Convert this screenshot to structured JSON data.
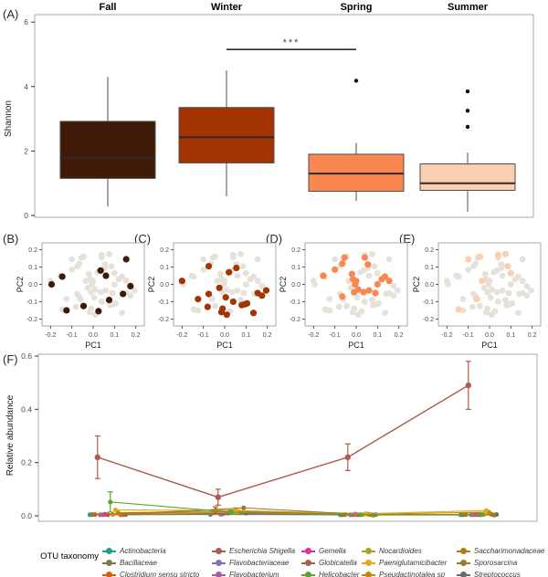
{
  "panel_labels": {
    "a": "(A)",
    "b": "(B)",
    "c": "(C)",
    "d": "(D)",
    "e": "(E)",
    "f": "(F)"
  },
  "colors": {
    "seasons": {
      "Fall": "#3F1A08",
      "Winter": "#A23503",
      "Spring": "#FA8650",
      "Summer": "#FCCFB2"
    },
    "pca_gray": "#E6E2D9",
    "panel_border": "#A8A8A8",
    "tick_text": "#4D4D4D",
    "outlier": "#111111"
  },
  "pca_points": [
    {
      "x": -0.195,
      "y": 0.0,
      "season": "Fall"
    },
    {
      "x": -0.145,
      "y": 0.045,
      "season": "Fall"
    },
    {
      "x": 0.035,
      "y": 0.08,
      "season": "Fall"
    },
    {
      "x": 0.06,
      "y": 0.05,
      "season": "Fall"
    },
    {
      "x": 0.155,
      "y": 0.145,
      "season": "Fall"
    },
    {
      "x": 0.175,
      "y": -0.01,
      "season": "Fall"
    },
    {
      "x": 0.14,
      "y": -0.055,
      "season": "Fall"
    },
    {
      "x": 0.075,
      "y": -0.09,
      "season": "Fall"
    },
    {
      "x": -0.045,
      "y": -0.125,
      "season": "Fall"
    },
    {
      "x": -0.125,
      "y": -0.15,
      "season": "Fall"
    },
    {
      "x": 0.025,
      "y": -0.155,
      "season": "Fall"
    },
    {
      "x": -0.2,
      "y": 0.02,
      "season": "Winter"
    },
    {
      "x": -0.075,
      "y": 0.105,
      "season": "Winter"
    },
    {
      "x": 0.02,
      "y": 0.07,
      "season": "Winter"
    },
    {
      "x": 0.055,
      "y": 0.095,
      "season": "Winter"
    },
    {
      "x": -0.025,
      "y": -0.02,
      "season": "Winter"
    },
    {
      "x": -0.075,
      "y": -0.055,
      "season": "Winter"
    },
    {
      "x": -0.125,
      "y": -0.085,
      "season": "Winter"
    },
    {
      "x": 0.005,
      "y": -0.075,
      "season": "Winter"
    },
    {
      "x": 0.04,
      "y": -0.1,
      "season": "Winter"
    },
    {
      "x": -0.08,
      "y": -0.13,
      "season": "Winter"
    },
    {
      "x": -0.01,
      "y": -0.14,
      "season": "Winter"
    },
    {
      "x": -0.015,
      "y": -0.16,
      "season": "Winter"
    },
    {
      "x": 0.01,
      "y": -0.175,
      "season": "Winter"
    },
    {
      "x": 0.08,
      "y": -0.12,
      "season": "Winter"
    },
    {
      "x": 0.095,
      "y": -0.115,
      "season": "Winter"
    },
    {
      "x": 0.105,
      "y": -0.11,
      "season": "Winter"
    },
    {
      "x": 0.135,
      "y": -0.165,
      "season": "Winter"
    },
    {
      "x": 0.155,
      "y": -0.05,
      "season": "Winter"
    },
    {
      "x": 0.175,
      "y": -0.065,
      "season": "Winter"
    },
    {
      "x": 0.195,
      "y": -0.035,
      "season": "Winter"
    },
    {
      "x": -0.155,
      "y": 0.05,
      "season": "Spring"
    },
    {
      "x": -0.1,
      "y": 0.085,
      "season": "Spring"
    },
    {
      "x": -0.065,
      "y": 0.12,
      "season": "Spring"
    },
    {
      "x": -0.055,
      "y": 0.155,
      "season": "Spring"
    },
    {
      "x": 0.04,
      "y": 0.155,
      "season": "Spring"
    },
    {
      "x": 0.055,
      "y": 0.115,
      "season": "Spring"
    },
    {
      "x": -0.02,
      "y": 0.06,
      "season": "Spring"
    },
    {
      "x": -0.015,
      "y": 0.03,
      "season": "Spring"
    },
    {
      "x": 0.0,
      "y": 0.02,
      "season": "Spring"
    },
    {
      "x": -0.005,
      "y": 0.0,
      "season": "Spring"
    },
    {
      "x": 0.01,
      "y": -0.03,
      "season": "Spring"
    },
    {
      "x": -0.01,
      "y": -0.045,
      "season": "Spring"
    },
    {
      "x": 0.035,
      "y": -0.045,
      "season": "Spring"
    },
    {
      "x": 0.06,
      "y": -0.035,
      "season": "Spring"
    },
    {
      "x": 0.1,
      "y": 0.0,
      "season": "Spring"
    },
    {
      "x": 0.12,
      "y": 0.03,
      "season": "Spring"
    },
    {
      "x": 0.135,
      "y": 0.045,
      "season": "Spring"
    },
    {
      "x": -0.065,
      "y": -0.07,
      "season": "Spring"
    },
    {
      "x": 0.155,
      "y": 0.02,
      "season": "Spring"
    },
    {
      "x": 0.09,
      "y": -0.05,
      "season": "Spring"
    },
    {
      "x": -0.1,
      "y": 0.145,
      "season": "Summer"
    },
    {
      "x": -0.045,
      "y": 0.16,
      "season": "Summer"
    },
    {
      "x": 0.04,
      "y": 0.17,
      "season": "Summer"
    },
    {
      "x": 0.075,
      "y": 0.175,
      "season": "Summer"
    },
    {
      "x": 0.085,
      "y": 0.105,
      "season": "Summer"
    },
    {
      "x": 0.1,
      "y": 0.065,
      "season": "Summer"
    },
    {
      "x": -0.035,
      "y": 0.02,
      "season": "Summer"
    },
    {
      "x": -0.06,
      "y": -0.085,
      "season": "Summer"
    },
    {
      "x": -0.145,
      "y": -0.145,
      "season": "Summer"
    }
  ],
  "chart_data": [
    {
      "id": "A",
      "type": "boxplot",
      "title": "",
      "categories": [
        "Fall",
        "Winter",
        "Spring",
        "Summer"
      ],
      "ylabel": "Shannon",
      "ylim": [
        0,
        6.3
      ],
      "yticks": [
        {
          "v": 0,
          "label": "0"
        },
        {
          "v": 2,
          "label": "2"
        },
        {
          "v": 4,
          "label": "4"
        },
        {
          "v": 6,
          "label": "6"
        }
      ],
      "boxes": [
        {
          "season": "Fall",
          "color": "#3F1A08",
          "low": 0.28,
          "q1": 1.15,
          "median": 1.78,
          "q3": 2.92,
          "high": 4.3,
          "outliers": []
        },
        {
          "season": "Winter",
          "color": "#A23503",
          "low": 0.6,
          "q1": 1.63,
          "median": 2.43,
          "q3": 3.35,
          "high": 4.5,
          "outliers": []
        },
        {
          "season": "Spring",
          "color": "#FA8650",
          "low": 0.45,
          "q1": 0.75,
          "median": 1.3,
          "q3": 1.9,
          "high": 2.25,
          "outliers": [
            4.18
          ]
        },
        {
          "season": "Summer",
          "color": "#FCCFB2",
          "low": 0.12,
          "q1": 0.78,
          "median": 1.0,
          "q3": 1.6,
          "high": 1.95,
          "outliers": [
            2.75,
            3.25,
            3.85
          ]
        }
      ],
      "significance": {
        "label": "***",
        "between": [
          "Winter",
          "Spring"
        ],
        "bar_y": 5.15
      }
    },
    {
      "id": "B",
      "type": "scatter",
      "highlight_season": "Fall",
      "xlabel": "PC1",
      "ylabel": "PC2",
      "xlim": [
        -0.24,
        0.24
      ],
      "ylim": [
        -0.24,
        0.24
      ],
      "xticks": [
        {
          "v": -0.2,
          "label": "-0.2"
        },
        {
          "v": -0.1,
          "label": "-0.1"
        },
        {
          "v": 0,
          "label": "0.0"
        },
        {
          "v": 0.1,
          "label": "0.1"
        },
        {
          "v": 0.2,
          "label": "0.2"
        }
      ],
      "yticks": [
        {
          "v": -0.2,
          "label": "-0.2"
        },
        {
          "v": -0.1,
          "label": "-0.1"
        },
        {
          "v": 0,
          "label": "0.0"
        },
        {
          "v": 0.1,
          "label": "0.1"
        },
        {
          "v": 0.2,
          "label": "0.2"
        }
      ],
      "points_ref": "pca_points"
    },
    {
      "id": "C",
      "type": "scatter",
      "highlight_season": "Winter",
      "xlabel": "PC1",
      "ylabel": "PC2",
      "xlim": [
        -0.24,
        0.24
      ],
      "ylim": [
        -0.24,
        0.24
      ],
      "xticks": [
        {
          "v": -0.2,
          "label": "-0.2"
        },
        {
          "v": -0.1,
          "label": "-0.1"
        },
        {
          "v": 0,
          "label": "0.0"
        },
        {
          "v": 0.1,
          "label": "0.1"
        },
        {
          "v": 0.2,
          "label": "0.2"
        }
      ],
      "yticks": [
        {
          "v": -0.2,
          "label": "-0.2"
        },
        {
          "v": -0.1,
          "label": "-0.1"
        },
        {
          "v": 0,
          "label": "0.0"
        },
        {
          "v": 0.1,
          "label": "0.1"
        },
        {
          "v": 0.2,
          "label": "0.2"
        }
      ],
      "points_ref": "pca_points"
    },
    {
      "id": "D",
      "type": "scatter",
      "highlight_season": "Spring",
      "xlabel": "PC1",
      "ylabel": "PC2",
      "xlim": [
        -0.24,
        0.24
      ],
      "ylim": [
        -0.24,
        0.24
      ],
      "xticks": [
        {
          "v": -0.2,
          "label": "-0.2"
        },
        {
          "v": -0.1,
          "label": "-0.1"
        },
        {
          "v": 0,
          "label": "0.0"
        },
        {
          "v": 0.1,
          "label": "0.1"
        },
        {
          "v": 0.2,
          "label": "0.2"
        }
      ],
      "yticks": [
        {
          "v": -0.2,
          "label": "-0.2"
        },
        {
          "v": -0.1,
          "label": "-0.1"
        },
        {
          "v": 0,
          "label": "0.0"
        },
        {
          "v": 0.1,
          "label": "0.1"
        },
        {
          "v": 0.2,
          "label": "0.2"
        }
      ],
      "points_ref": "pca_points"
    },
    {
      "id": "E",
      "type": "scatter",
      "highlight_season": "Summer",
      "xlabel": "PC1",
      "ylabel": "PC2",
      "xlim": [
        -0.24,
        0.24
      ],
      "ylim": [
        -0.24,
        0.24
      ],
      "xticks": [
        {
          "v": -0.2,
          "label": "-0.2"
        },
        {
          "v": -0.1,
          "label": "-0.1"
        },
        {
          "v": 0,
          "label": "0.0"
        },
        {
          "v": 0.1,
          "label": "0.1"
        },
        {
          "v": 0.2,
          "label": "0.2"
        }
      ],
      "yticks": [
        {
          "v": -0.2,
          "label": "-0.2"
        },
        {
          "v": -0.1,
          "label": "-0.1"
        },
        {
          "v": 0,
          "label": "0.0"
        },
        {
          "v": 0.1,
          "label": "0.1"
        },
        {
          "v": 0.2,
          "label": "0.2"
        }
      ],
      "points_ref": "pca_points"
    },
    {
      "id": "F",
      "type": "line",
      "ylabel": "Relative abundance",
      "ylim": [
        0,
        0.62
      ],
      "yticks": [
        {
          "v": 0,
          "label": "0.0"
        },
        {
          "v": 0.2,
          "label": "0.2"
        },
        {
          "v": 0.4,
          "label": "0.4"
        },
        {
          "v": 0.6,
          "label": "0.6"
        }
      ],
      "x": [
        1,
        2,
        3,
        4
      ],
      "series": [
        {
          "name": "Actinobacteria",
          "color": "#1FA287",
          "values": [
            0.004,
            0.005,
            0.004,
            0.004
          ],
          "errors": [
            0,
            0,
            0,
            0
          ]
        },
        {
          "name": "Bacillaceae",
          "color": "#7E7B48",
          "values": [
            0.005,
            0.012,
            0.004,
            0.004
          ],
          "errors": [
            0,
            0,
            0,
            0
          ]
        },
        {
          "name": "Clostridium sensu stricto",
          "color": "#D95F0E",
          "values": [
            0.005,
            0.022,
            0.005,
            0.005
          ],
          "errors": [
            0,
            0.012,
            0,
            0
          ]
        },
        {
          "name": "Escherichia Shigella",
          "color": "#AD5C4B",
          "values": [
            0.22,
            0.07,
            0.22,
            0.49
          ],
          "errors": [
            0.08,
            0.03,
            0.05,
            0.09
          ]
        },
        {
          "name": "Flavobacteriaceae",
          "color": "#7B74BF",
          "values": [
            0.004,
            0.006,
            0.004,
            0.004
          ],
          "errors": [
            0,
            0,
            0,
            0
          ]
        },
        {
          "name": "Flavobacterium",
          "color": "#A95CA8",
          "values": [
            0.004,
            0.008,
            0.004,
            0.004
          ],
          "errors": [
            0,
            0,
            0,
            0
          ]
        },
        {
          "name": "Gemella",
          "color": "#E0309A",
          "values": [
            0.006,
            0.012,
            0.006,
            0.005
          ],
          "errors": [
            0,
            0,
            0,
            0
          ]
        },
        {
          "name": "Globicatella",
          "color": "#A9604F",
          "values": [
            0.004,
            0.01,
            0.004,
            0.004
          ],
          "errors": [
            0,
            0,
            0,
            0
          ]
        },
        {
          "name": "Helicobacter",
          "color": "#5BA630",
          "values": [
            0.052,
            0.014,
            0.004,
            0.004
          ],
          "errors": [
            0.038,
            0.008,
            0,
            0
          ]
        },
        {
          "name": "Nocardioides",
          "color": "#A3A820",
          "values": [
            0.005,
            0.014,
            0.005,
            0.005
          ],
          "errors": [
            0,
            0,
            0,
            0
          ]
        },
        {
          "name": "Paeniglutamicibacter",
          "color": "#E2A817",
          "values": [
            0.022,
            0.02,
            0.008,
            0.02
          ],
          "errors": [
            0,
            0.01,
            0,
            0
          ]
        },
        {
          "name": "Pseudactinotalea sp",
          "color": "#C8860D",
          "values": [
            0.012,
            0.016,
            0.006,
            0.014
          ],
          "errors": [
            0,
            0,
            0,
            0
          ]
        },
        {
          "name": "Saccharimonadaceae",
          "color": "#AD7D10",
          "values": [
            0.004,
            0.012,
            0.004,
            0.006
          ],
          "errors": [
            0,
            0,
            0,
            0
          ]
        },
        {
          "name": "Sporosarcina",
          "color": "#9C7B29",
          "values": [
            0.004,
            0.03,
            0.003,
            0.003
          ],
          "errors": [
            0,
            0,
            0,
            0
          ]
        },
        {
          "name": "Streptococcus",
          "color": "#6B6B6B",
          "values": [
            0.005,
            0.01,
            0.005,
            0.005
          ],
          "errors": [
            0,
            0,
            0,
            0
          ]
        }
      ]
    }
  ],
  "legend": {
    "title": "OTU taxonomy",
    "items": [
      {
        "label": "Actinobacteria",
        "color": "#1FA287"
      },
      {
        "label": "Bacillaceae",
        "color": "#7E7B48"
      },
      {
        "label": "Clostridium sensu stricto",
        "color": "#D95F0E"
      },
      {
        "label": "Escherichia Shigella",
        "color": "#AD5C4B"
      },
      {
        "label": "Flavobacteriaceae",
        "color": "#7B74BF"
      },
      {
        "label": "Flavobacterium",
        "color": "#A95CA8"
      },
      {
        "label": "Gemella",
        "color": "#E0309A"
      },
      {
        "label": "Globicatella",
        "color": "#A9604F"
      },
      {
        "label": "Helicobacter",
        "color": "#5BA630"
      },
      {
        "label": "Nocardioides",
        "color": "#A3A820"
      },
      {
        "label": "Paeniglutamicibacter",
        "color": "#E2A817"
      },
      {
        "label": "Pseudactinotalea sp",
        "color": "#C8860D"
      },
      {
        "label": "Saccharimonadaceae",
        "color": "#AD7D10"
      },
      {
        "label": "Sporosarcina",
        "color": "#9C7B29"
      },
      {
        "label": "Streptococcus",
        "color": "#6B6B6B"
      }
    ]
  }
}
